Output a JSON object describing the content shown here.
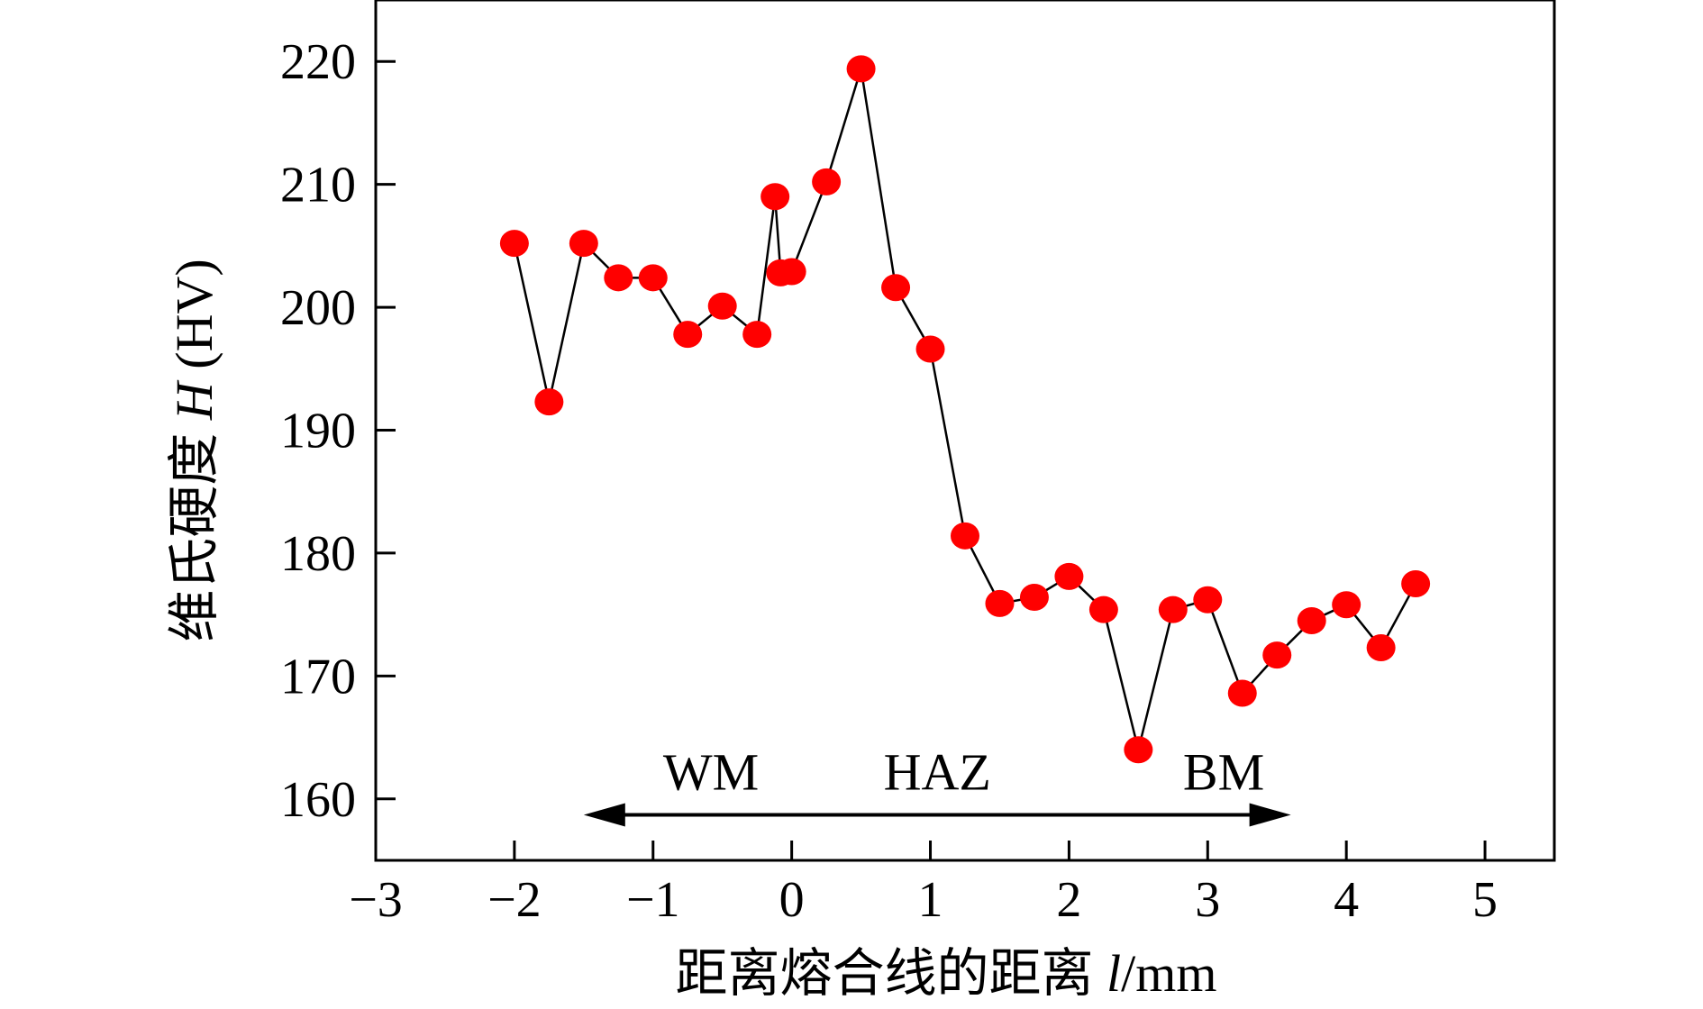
{
  "chart_data": {
    "type": "line",
    "title": "",
    "xlabel_text": "距离熔合线的距离 ",
    "xlabel_var": "l",
    "xlabel_unit": "/mm",
    "ylabel_text": "维氏硬度 ",
    "ylabel_var": "H",
    "ylabel_unit": " (HV)",
    "xlim": [
      -3,
      5.5
    ],
    "ylim": [
      155,
      225
    ],
    "xticks": [
      -3,
      -2,
      -1,
      0,
      1,
      2,
      3,
      4,
      5
    ],
    "xtick_labels": [
      "−3",
      "−2",
      "−1",
      "0",
      "1",
      "2",
      "3",
      "4",
      "5"
    ],
    "yticks": [
      160,
      170,
      180,
      190,
      200,
      210,
      220
    ],
    "ytick_labels": [
      "160",
      "170",
      "180",
      "190",
      "200",
      "210",
      "220"
    ],
    "grid": false,
    "marker_color": "#ff0000",
    "line_color": "#000000",
    "series": [
      {
        "x": [
          -2.0,
          -1.75,
          -1.5,
          -1.25,
          -1.0,
          -0.75,
          -0.5,
          -0.25,
          -0.12,
          -0.08,
          0.0,
          0.25,
          0.5,
          0.75,
          1.0,
          1.25,
          1.5,
          1.75,
          2.0,
          2.25,
          2.5,
          2.75,
          3.0,
          3.25,
          3.5,
          3.75,
          4.0,
          4.25,
          4.5
        ],
        "y": [
          205.2,
          192.3,
          205.2,
          202.4,
          202.4,
          197.8,
          200.1,
          197.8,
          209.0,
          202.8,
          202.9,
          210.2,
          219.4,
          201.6,
          196.6,
          181.4,
          175.9,
          176.4,
          178.1,
          175.4,
          164.0,
          175.4,
          176.2,
          168.6,
          171.7,
          174.5,
          175.8,
          172.3,
          177.5
        ]
      }
    ],
    "annotations": {
      "regions": [
        "WM",
        "HAZ",
        "BM"
      ],
      "arrow_x_range": [
        -1.5,
        3.6
      ],
      "arrow_y": 158.7
    }
  }
}
